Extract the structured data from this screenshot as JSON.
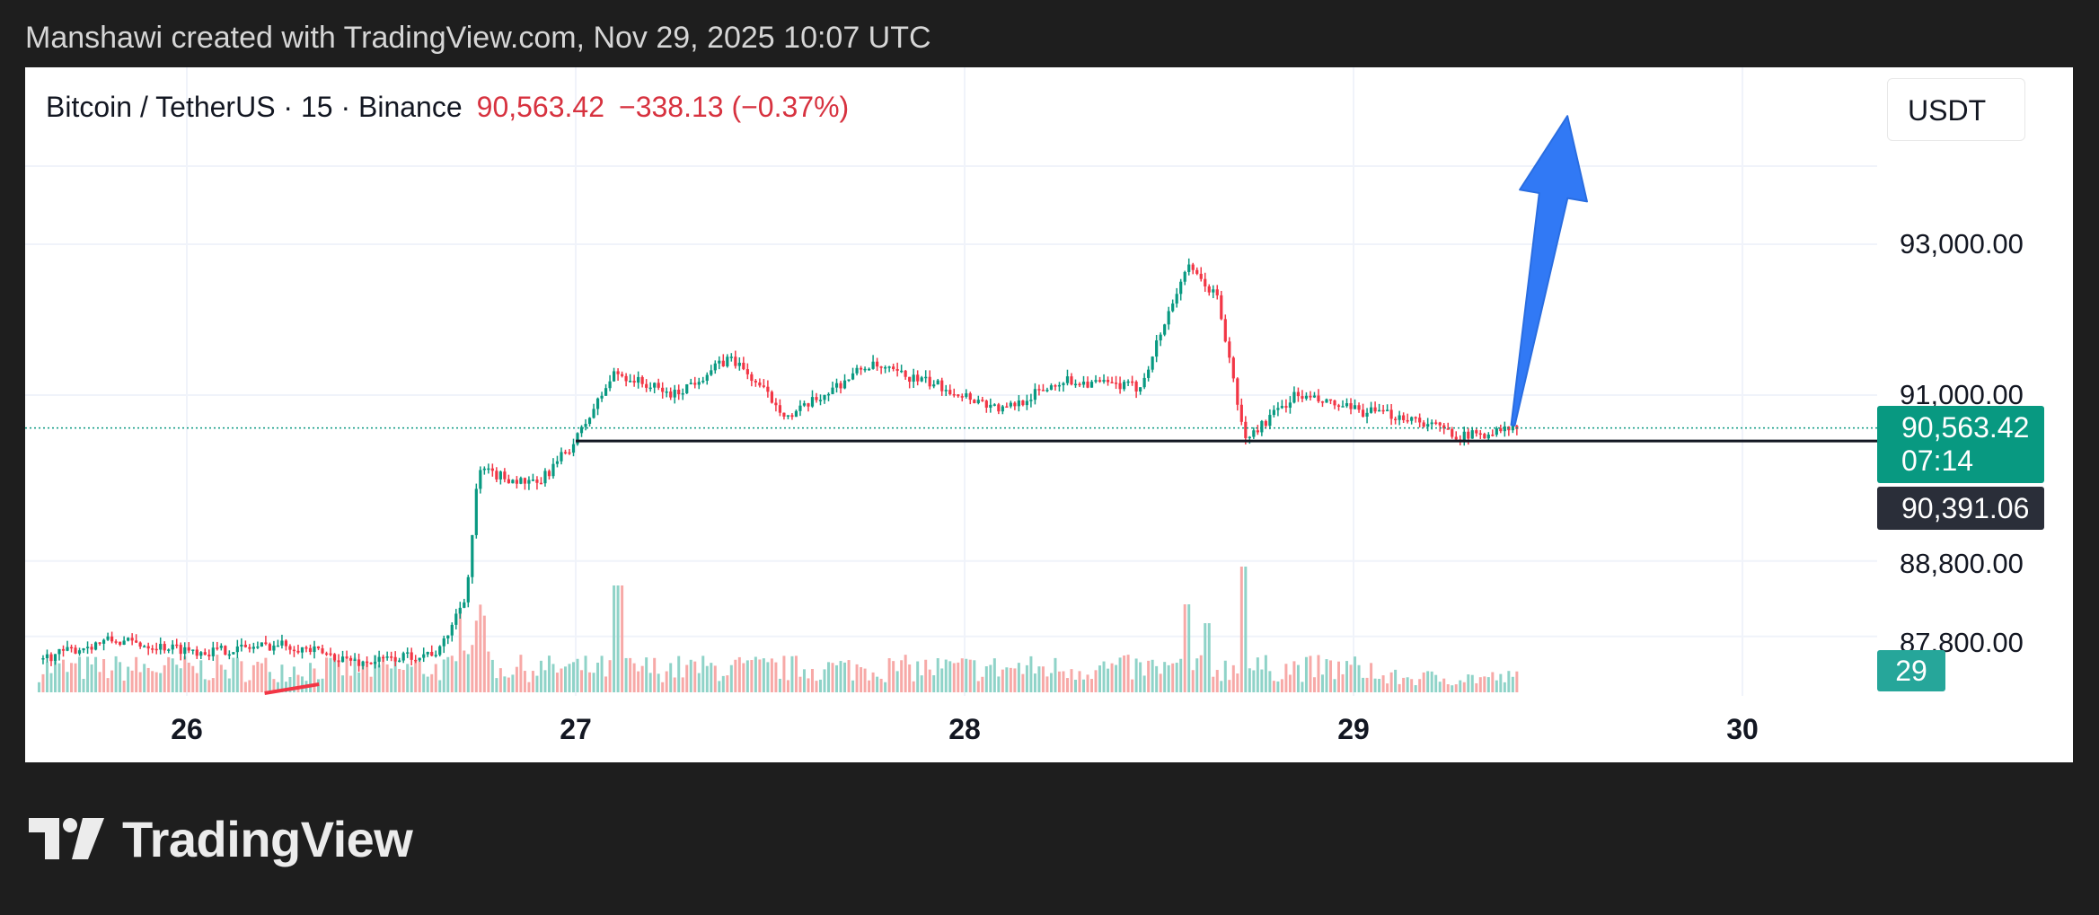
{
  "caption": "Manshawi created with TradingView.com, Nov 29, 2025 10:07 UTC",
  "symbol": {
    "name": "Bitcoin / TetherUS · 15 · Binance",
    "price": "90,563.42",
    "change": "−338.13 (−0.37%)"
  },
  "currency": "USDT",
  "logo_text": "TradingView",
  "colors": {
    "up": "#089981",
    "down": "#f23645",
    "arrow": "#3179f5",
    "volume_up": "#8fd3c8",
    "volume_down": "#f7a9a7"
  },
  "chart_data": {
    "type": "candlestick",
    "title": "",
    "x_ticks": [
      "26",
      "27",
      "28",
      "29",
      "30"
    ],
    "y_ticks": [
      "93,000.00",
      "91,000.00",
      "88,800.00",
      "87,800.00"
    ],
    "price_ticks": [
      93000,
      91000,
      88800,
      87800
    ],
    "last_price": {
      "value": 90563.42,
      "label": "90,563.42",
      "countdown": "07:14"
    },
    "horizontal_line": {
      "value": 90391.06,
      "label": "90,391.06"
    },
    "volume_label": "29",
    "price_path_keypoints": [
      {
        "day": 25.62,
        "price": 87500
      },
      {
        "day": 25.8,
        "price": 87750
      },
      {
        "day": 26.05,
        "price": 87600
      },
      {
        "day": 26.25,
        "price": 87700
      },
      {
        "day": 26.45,
        "price": 87450
      },
      {
        "day": 26.65,
        "price": 87600
      },
      {
        "day": 26.72,
        "price": 88400
      },
      {
        "day": 26.75,
        "price": 90000
      },
      {
        "day": 26.9,
        "price": 89800
      },
      {
        "day": 27.0,
        "price": 90400
      },
      {
        "day": 27.1,
        "price": 91300
      },
      {
        "day": 27.25,
        "price": 91000
      },
      {
        "day": 27.4,
        "price": 91500
      },
      {
        "day": 27.55,
        "price": 90700
      },
      {
        "day": 27.75,
        "price": 91400
      },
      {
        "day": 27.95,
        "price": 91100
      },
      {
        "day": 28.1,
        "price": 90800
      },
      {
        "day": 28.25,
        "price": 91200
      },
      {
        "day": 28.45,
        "price": 91100
      },
      {
        "day": 28.57,
        "price": 92700
      },
      {
        "day": 28.65,
        "price": 92300
      },
      {
        "day": 28.72,
        "price": 90400
      },
      {
        "day": 28.85,
        "price": 91000
      },
      {
        "day": 29.0,
        "price": 90800
      },
      {
        "day": 29.15,
        "price": 90700
      },
      {
        "day": 29.28,
        "price": 90450
      },
      {
        "day": 29.42,
        "price": 90560
      }
    ],
    "volume_spikes": [
      {
        "day": 26.72,
        "value": 0.75
      },
      {
        "day": 27.11,
        "value": 0.85
      },
      {
        "day": 28.57,
        "value": 0.7
      },
      {
        "day": 28.72,
        "value": 1.0
      },
      {
        "day": 28.62,
        "value": 0.55
      }
    ],
    "annotations": [
      {
        "type": "arrow",
        "direction": "up",
        "from": {
          "day": 29.41,
          "price": 90600
        },
        "to": {
          "day": 29.55,
          "price": 94700
        }
      }
    ]
  }
}
